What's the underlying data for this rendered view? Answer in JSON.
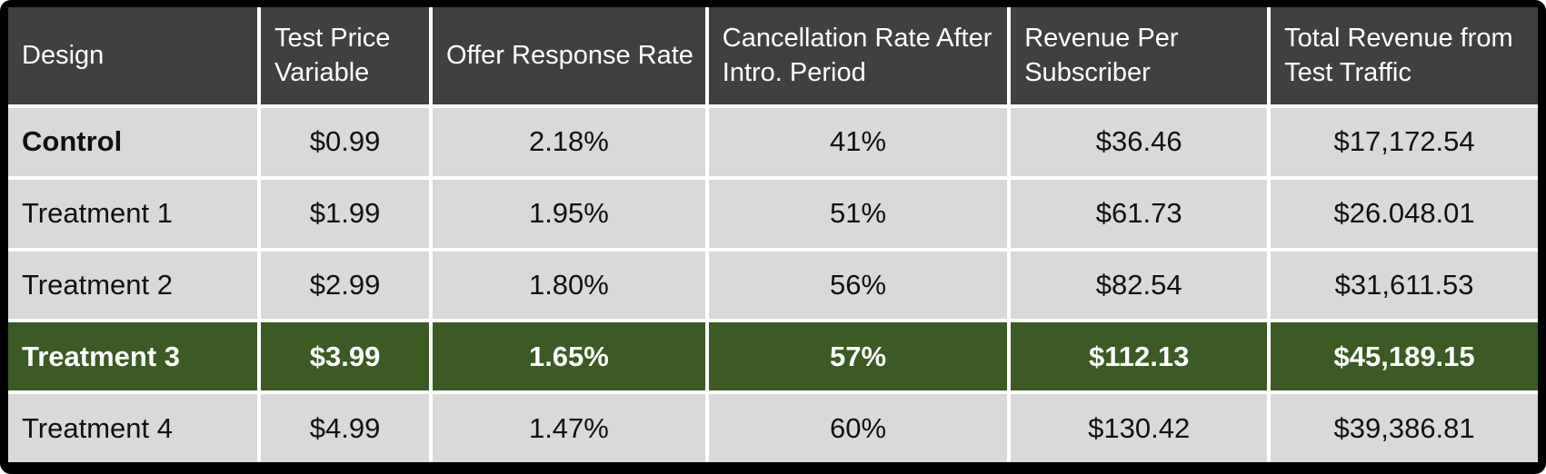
{
  "chart_data": {
    "type": "table",
    "columns": [
      "Design",
      "Test Price Variable",
      "Offer Response Rate",
      "Cancellation Rate After Intro. Period",
      "Revenue Per Subscriber",
      "Total Revenue from Test Traffic"
    ],
    "rows": [
      {
        "cells": [
          "Control",
          "$0.99",
          "2.18%",
          "41%",
          "$36.46",
          "$17,172.54"
        ],
        "highlight": false,
        "bold_label": true
      },
      {
        "cells": [
          "Treatment 1",
          "$1.99",
          "1.95%",
          "51%",
          "$61.73",
          "$26.048.01"
        ],
        "highlight": false,
        "bold_label": false
      },
      {
        "cells": [
          "Treatment 2",
          "$2.99",
          "1.80%",
          "56%",
          "$82.54",
          "$31,611.53"
        ],
        "highlight": false,
        "bold_label": false
      },
      {
        "cells": [
          "Treatment 3",
          "$3.99",
          "1.65%",
          "57%",
          "$112.13",
          "$45,189.15"
        ],
        "highlight": true,
        "bold_label": true
      },
      {
        "cells": [
          "Treatment 4",
          "$4.99",
          "1.47%",
          "60%",
          "$130.42",
          "$39,386.81"
        ],
        "highlight": false,
        "bold_label": false
      }
    ],
    "highlighted_row": "Treatment 3",
    "colors": {
      "frame": "#000000",
      "gap": "#ffffff",
      "header_bg": "#404040",
      "header_text": "#ffffff",
      "row_bg": "#d9d9d9",
      "row_text": "#111111",
      "highlight_bg": "#3c5a24",
      "highlight_text": "#ffffff"
    }
  }
}
